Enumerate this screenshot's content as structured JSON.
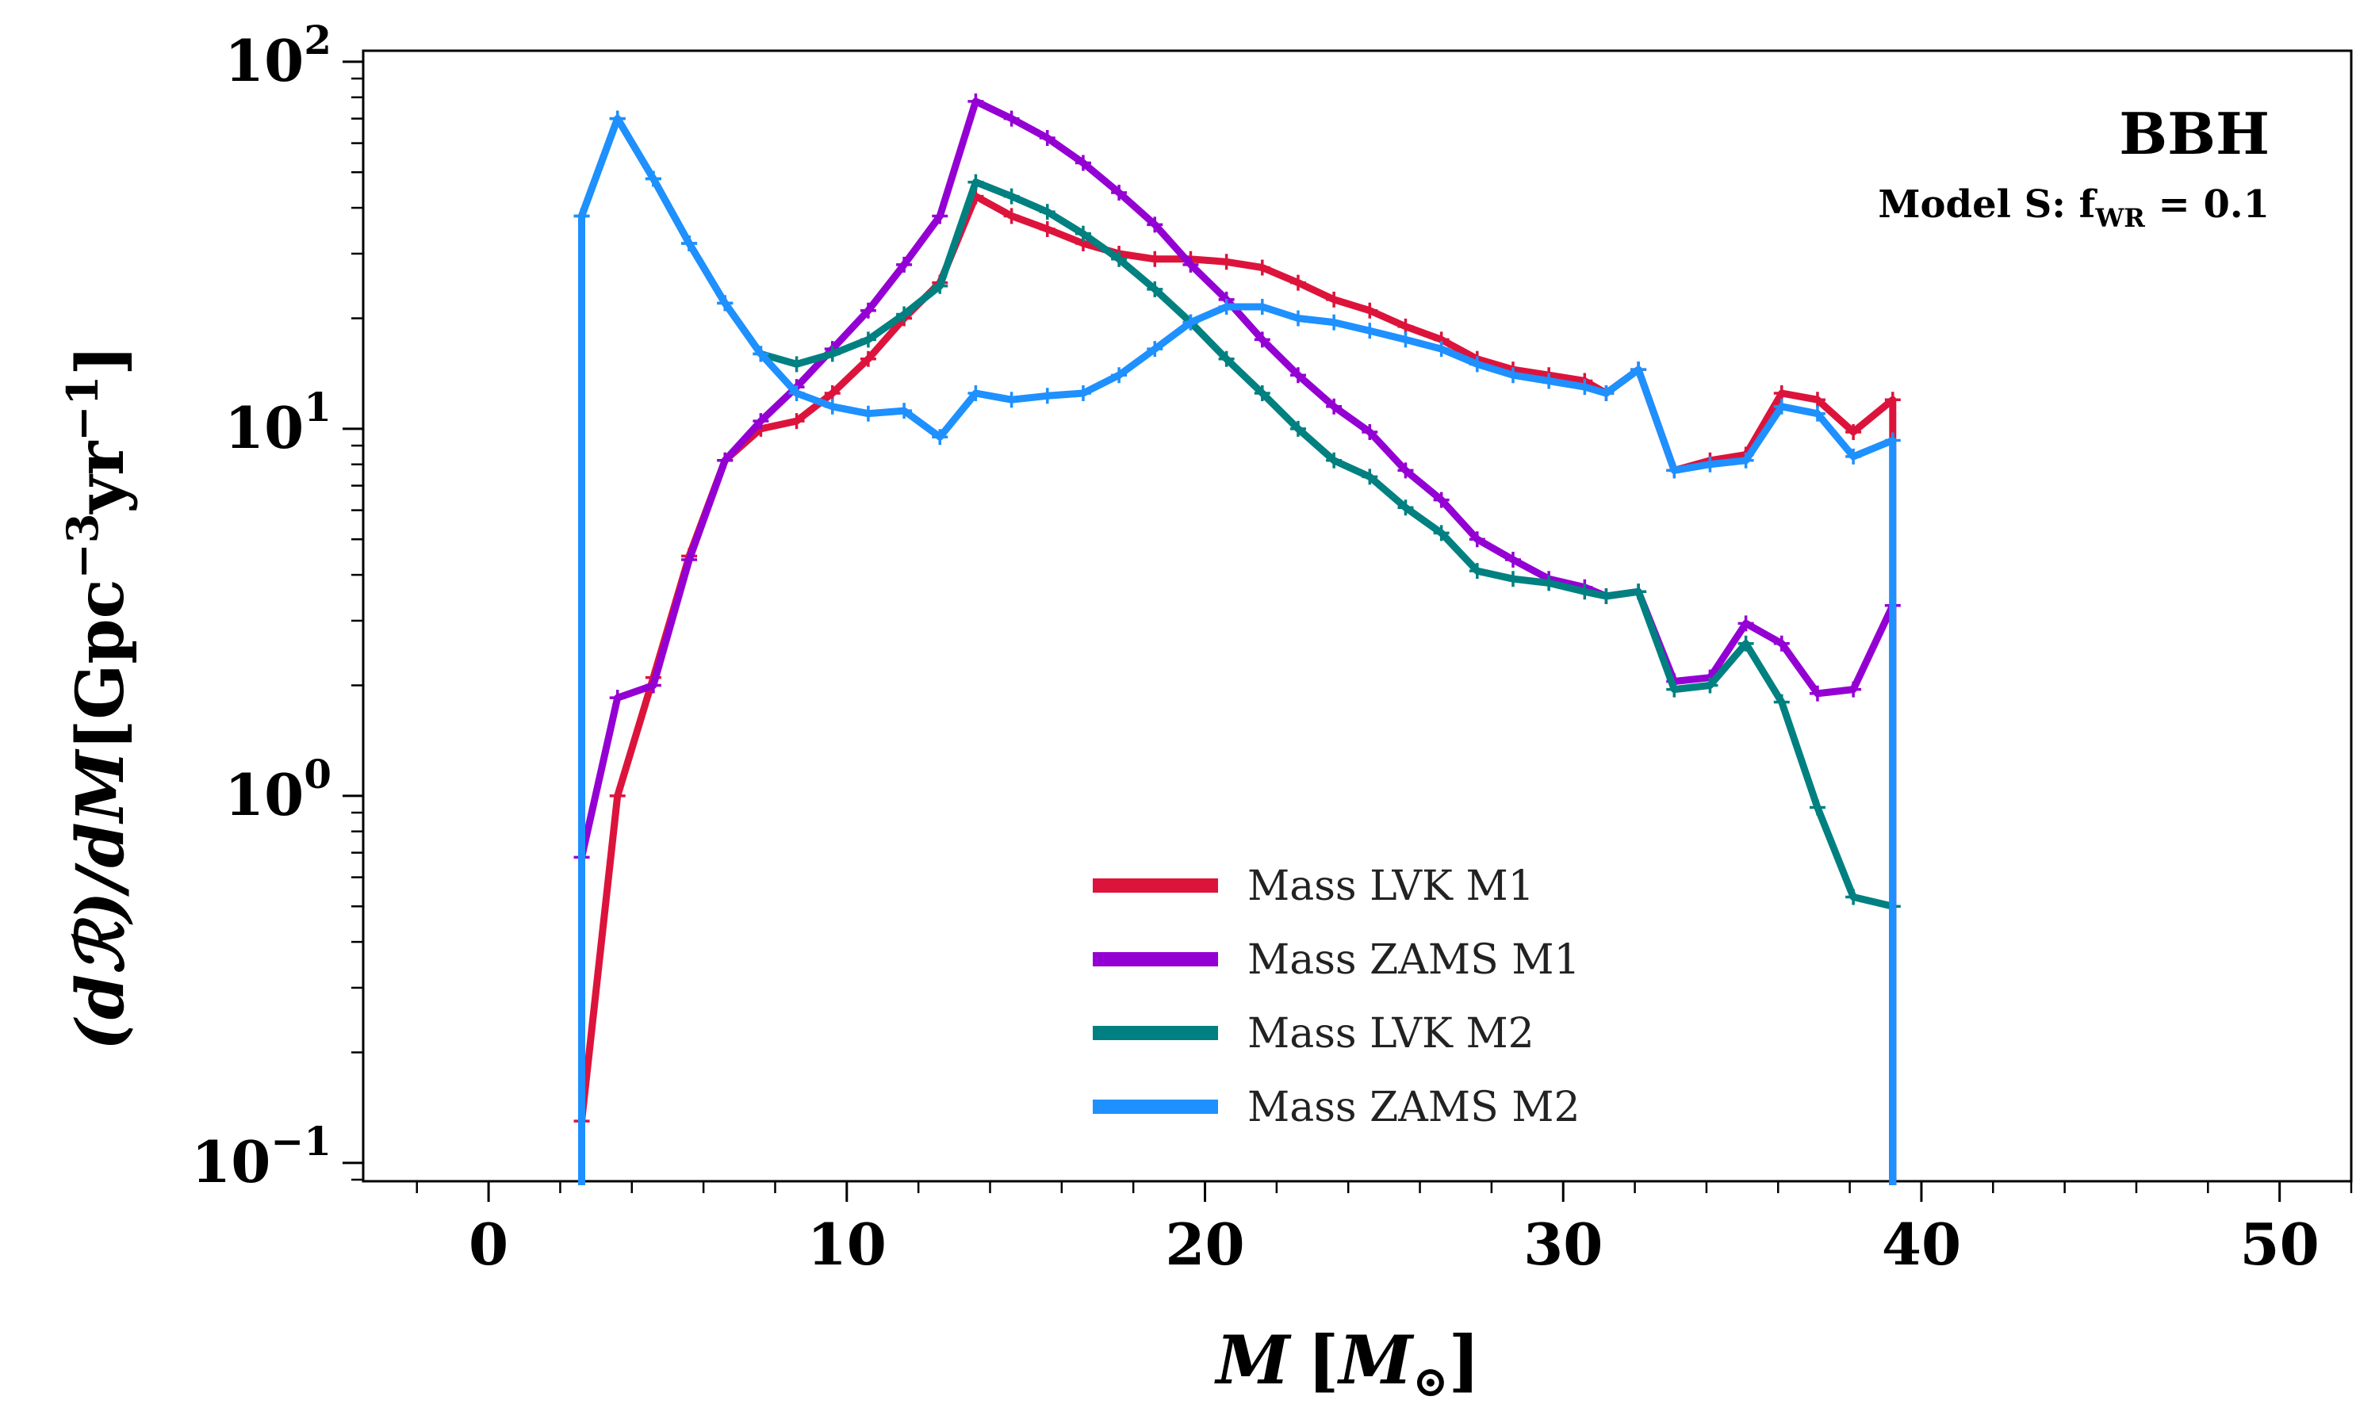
{
  "chart_data": {
    "type": "line",
    "annotation_title": "BBH",
    "annotation_subtitle": {
      "prefix": "Model S: f",
      "subscript": "WR",
      "suffix": " = 0.1"
    },
    "xlabel": {
      "main": "M",
      "open": "[",
      "unit": "M",
      "unit_sub": "⊙",
      "close": "]"
    },
    "ylabel": {
      "lhs": "(dℛ)/dM",
      "open": "[",
      "unit": "Gpc",
      "exp1": "−3",
      "unit2": "yr",
      "exp2": "−1",
      "close": "]"
    },
    "xlim": [
      -3.5,
      52
    ],
    "ylim_log10": [
      -1.05,
      2.03
    ],
    "yscale": "log",
    "x_ticks": [
      {
        "v": 0,
        "label": "0"
      },
      {
        "v": 10,
        "label": "10"
      },
      {
        "v": 20,
        "label": "20"
      },
      {
        "v": 30,
        "label": "30"
      },
      {
        "v": 40,
        "label": "40"
      },
      {
        "v": 50,
        "label": "50"
      }
    ],
    "x_minor_step": 2,
    "y_ticks": [
      {
        "e": -1,
        "base": "10",
        "exp": "−1"
      },
      {
        "e": 0,
        "base": "10",
        "exp": "0"
      },
      {
        "e": 1,
        "base": "10",
        "exp": "1"
      },
      {
        "e": 2,
        "base": "10",
        "exp": "2"
      }
    ],
    "legend_position": "lower-center",
    "series": [
      {
        "name": "Mass LVK M1",
        "color": "#dc143c",
        "x": [
          2.6,
          3.6,
          4.6,
          5.6,
          6.6,
          7.6,
          8.6,
          9.6,
          10.6,
          11.6,
          12.6,
          13.6,
          14.6,
          15.6,
          16.6,
          17.6,
          18.6,
          19.6,
          20.6,
          21.6,
          22.6,
          23.6,
          24.6,
          25.6,
          26.6,
          27.6,
          28.6,
          29.6,
          30.6,
          31.2,
          32.1,
          33.1,
          34.1,
          35.1,
          36.1,
          37.1,
          38.1,
          39.2
        ],
        "y": [
          0.13,
          1.0,
          2.1,
          4.5,
          8.2,
          10.0,
          10.5,
          12.5,
          15.5,
          20.0,
          25.0,
          43.0,
          38.0,
          35.0,
          32.0,
          30.0,
          29.0,
          29.0,
          28.5,
          27.5,
          25.0,
          22.5,
          21.0,
          19.0,
          17.5,
          15.5,
          14.5,
          14.0,
          13.5,
          12.5,
          14.5,
          7.7,
          8.2,
          8.5,
          12.5,
          12.0,
          9.8,
          12.0
        ]
      },
      {
        "name": "Mass ZAMS M1",
        "color": "#9400d3",
        "x": [
          2.6,
          3.6,
          4.6,
          5.6,
          6.6,
          7.6,
          8.6,
          9.6,
          10.6,
          11.6,
          12.6,
          13.6,
          14.6,
          15.6,
          16.6,
          17.6,
          18.6,
          19.6,
          20.6,
          21.6,
          22.6,
          23.6,
          24.6,
          25.6,
          26.6,
          27.6,
          28.6,
          29.6,
          30.6,
          31.2,
          32.1,
          33.1,
          34.1,
          35.1,
          36.1,
          37.1,
          38.1,
          39.2
        ],
        "y": [
          0.68,
          1.85,
          2.0,
          4.4,
          8.2,
          10.5,
          13.0,
          16.5,
          21.0,
          28.0,
          38.0,
          78.0,
          70.0,
          62.0,
          53.0,
          44.0,
          36.0,
          28.0,
          22.5,
          17.5,
          14.0,
          11.5,
          9.8,
          7.7,
          6.4,
          5.0,
          4.4,
          3.9,
          3.7,
          3.5,
          3.6,
          2.05,
          2.1,
          2.95,
          2.6,
          1.9,
          1.95,
          3.3
        ]
      },
      {
        "name": "Mass LVK M2",
        "color": "#008080",
        "x": [
          2.6,
          3.6,
          4.6,
          5.6,
          6.6,
          7.6,
          8.6,
          9.6,
          10.6,
          11.6,
          12.6,
          13.6,
          14.6,
          15.6,
          16.6,
          17.6,
          18.6,
          19.6,
          20.6,
          21.6,
          22.6,
          23.6,
          24.6,
          25.6,
          26.6,
          27.6,
          28.6,
          29.6,
          30.6,
          31.2,
          32.1,
          33.1,
          34.1,
          35.1,
          36.1,
          37.1,
          38.1,
          39.2
        ],
        "y": [
          38.0,
          70.0,
          48.0,
          32.0,
          22.0,
          16.0,
          15.0,
          16.0,
          17.5,
          20.5,
          24.5,
          47.0,
          43.0,
          39.0,
          34.0,
          29.0,
          24.0,
          19.5,
          15.5,
          12.5,
          10.0,
          8.2,
          7.4,
          6.1,
          5.2,
          4.1,
          3.9,
          3.8,
          3.6,
          3.5,
          3.6,
          1.95,
          2.0,
          2.6,
          1.8,
          0.93,
          0.53,
          0.5
        ]
      },
      {
        "name": "Mass ZAMS M2",
        "color": "#1e90ff",
        "x": [
          2.6,
          3.6,
          4.6,
          5.6,
          6.6,
          7.6,
          8.6,
          9.6,
          10.6,
          11.6,
          12.6,
          13.6,
          14.6,
          15.6,
          16.6,
          17.6,
          18.6,
          19.6,
          20.6,
          21.6,
          22.6,
          23.6,
          24.6,
          25.6,
          26.6,
          27.6,
          28.6,
          29.6,
          30.6,
          31.2,
          32.1,
          33.1,
          34.1,
          35.1,
          36.1,
          37.1,
          38.1,
          39.2
        ],
        "y": [
          38.0,
          70.0,
          48.0,
          32.0,
          22.0,
          16.0,
          12.5,
          11.5,
          11.0,
          11.2,
          9.5,
          12.5,
          12.0,
          12.3,
          12.5,
          14.0,
          16.5,
          19.5,
          21.5,
          21.5,
          20.0,
          19.5,
          18.5,
          17.5,
          16.5,
          15.0,
          14.0,
          13.5,
          13.0,
          12.5,
          14.5,
          7.7,
          8.0,
          8.2,
          11.5,
          11.0,
          8.4,
          9.3
        ]
      }
    ]
  }
}
